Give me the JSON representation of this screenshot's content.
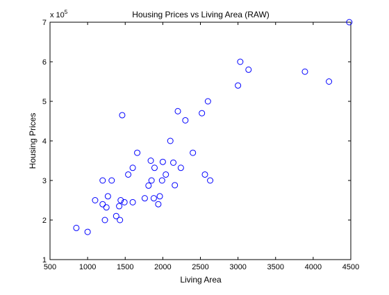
{
  "chart_data": {
    "type": "scatter",
    "title": "Housing Prices vs Living Area (RAW)",
    "xlabel": "Living Area",
    "ylabel": "Housing Prices",
    "y_multiplier_label": "x 10",
    "y_multiplier_exponent": "5",
    "xlim": [
      500,
      4500
    ],
    "ylim": [
      1,
      7
    ],
    "x_ticks": [
      500,
      1000,
      1500,
      2000,
      2500,
      3000,
      3500,
      4000,
      4500
    ],
    "y_ticks": [
      1,
      2,
      3,
      4,
      5,
      6,
      7
    ],
    "grid": false,
    "marker": "circle-open",
    "marker_color": "#0000ff",
    "series": [
      {
        "points": [
          [
            850,
            1.8
          ],
          [
            1000,
            1.7
          ],
          [
            1100,
            2.5
          ],
          [
            1200,
            3.0
          ],
          [
            1200,
            2.4
          ],
          [
            1230,
            2.0
          ],
          [
            1250,
            2.32
          ],
          [
            1270,
            2.6
          ],
          [
            1320,
            3.0
          ],
          [
            1380,
            2.1
          ],
          [
            1420,
            2.35
          ],
          [
            1430,
            2.0
          ],
          [
            1440,
            2.5
          ],
          [
            1460,
            4.65
          ],
          [
            1490,
            2.45
          ],
          [
            1540,
            3.15
          ],
          [
            1600,
            3.32
          ],
          [
            1600,
            2.45
          ],
          [
            1660,
            3.7
          ],
          [
            1760,
            2.55
          ],
          [
            1810,
            2.87
          ],
          [
            1840,
            3.5
          ],
          [
            1850,
            3.0
          ],
          [
            1880,
            2.55
          ],
          [
            1890,
            3.32
          ],
          [
            1940,
            2.4
          ],
          [
            1960,
            2.6
          ],
          [
            1990,
            3.0
          ],
          [
            2000,
            3.47
          ],
          [
            2040,
            3.15
          ],
          [
            2100,
            4.0
          ],
          [
            2140,
            3.45
          ],
          [
            2160,
            2.88
          ],
          [
            2200,
            4.75
          ],
          [
            2240,
            3.32
          ],
          [
            2300,
            4.52
          ],
          [
            2400,
            3.7
          ],
          [
            2520,
            4.7
          ],
          [
            2560,
            3.15
          ],
          [
            2600,
            5.0
          ],
          [
            2630,
            3.0
          ],
          [
            3000,
            5.4
          ],
          [
            3030,
            6.0
          ],
          [
            3140,
            5.8
          ],
          [
            3890,
            5.75
          ],
          [
            4210,
            5.5
          ],
          [
            4480,
            7.0
          ]
        ]
      }
    ]
  }
}
